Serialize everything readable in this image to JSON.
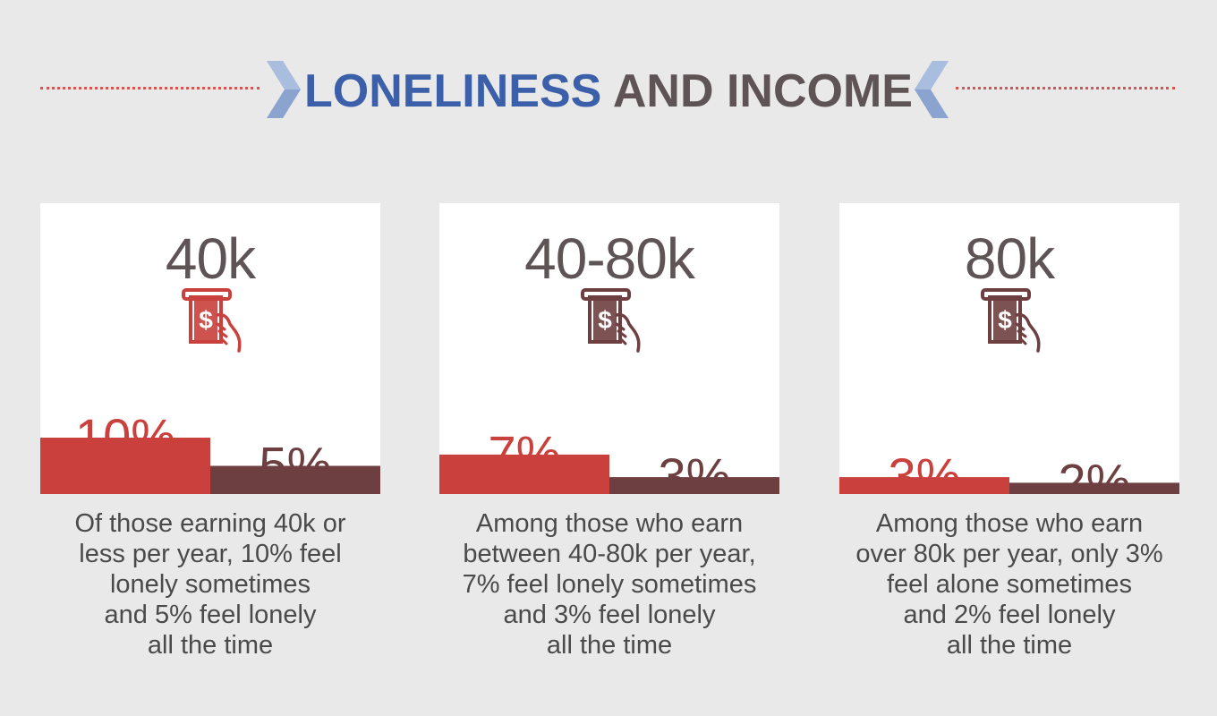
{
  "title": {
    "part1": "LONELINESS",
    "part2": "AND INCOME"
  },
  "colors": {
    "sometimes": "#c9403c",
    "all_the_time": "#6e3f40",
    "title_blue": "#3b5fa9",
    "title_gray": "#5e5456",
    "dots": "#d9534f"
  },
  "icon": "atm-cash-withdrawal-icon",
  "chart_data": [
    {
      "type": "bar",
      "title": "40k",
      "categories": [
        "lonely sometimes",
        "lonely all the time"
      ],
      "values": [
        10,
        5
      ],
      "labels": [
        "10%",
        "5%"
      ],
      "ylim": [
        0,
        20
      ],
      "icon_color": "#c9403c",
      "caption": [
        "Of those earning 40k or",
        "less per year, 10% feel",
        "lonely sometimes",
        "and 5% feel lonely",
        "all the time"
      ]
    },
    {
      "type": "bar",
      "title": "40-80k",
      "categories": [
        "lonely sometimes",
        "lonely all the time"
      ],
      "values": [
        7,
        3
      ],
      "labels": [
        "7%",
        "3%"
      ],
      "ylim": [
        0,
        20
      ],
      "icon_color": "#6e3f40",
      "caption": [
        "Among those who earn",
        "between 40-80k per year,",
        "7% feel lonely sometimes",
        "and 3% feel lonely",
        "all the time"
      ]
    },
    {
      "type": "bar",
      "title": "80k",
      "categories": [
        "lonely sometimes",
        "lonely all the time"
      ],
      "values": [
        3,
        2
      ],
      "labels": [
        "3%",
        "2%"
      ],
      "ylim": [
        0,
        20
      ],
      "icon_color": "#6e3f40",
      "caption": [
        "Among those who earn",
        "over 80k per year, only 3%",
        "feel alone sometimes",
        "and 2% feel lonely",
        "all the time"
      ]
    }
  ]
}
